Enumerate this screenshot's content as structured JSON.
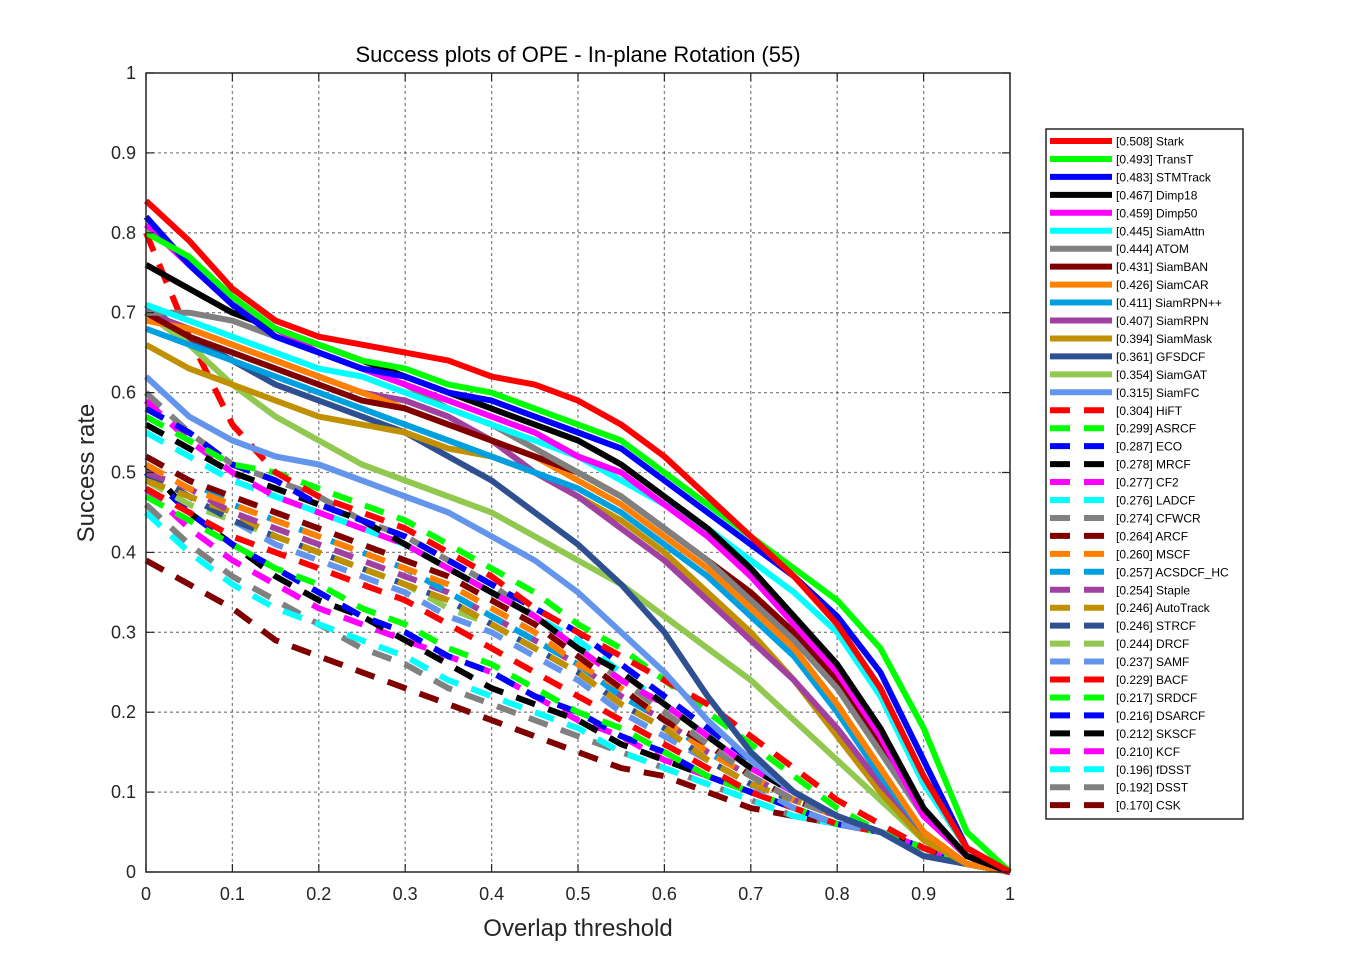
{
  "chart_data": {
    "type": "line",
    "title": "Success plots of OPE - In-plane Rotation (55)",
    "xlabel": "Overlap threshold",
    "ylabel": "Success rate",
    "xlim": [
      0,
      1
    ],
    "ylim": [
      0,
      1
    ],
    "xticks": [
      "0",
      "0.1",
      "0.2",
      "0.3",
      "0.4",
      "0.5",
      "0.6",
      "0.7",
      "0.8",
      "0.9",
      "1"
    ],
    "yticks": [
      "0",
      "0.1",
      "0.2",
      "0.3",
      "0.4",
      "0.5",
      "0.6",
      "0.7",
      "0.8",
      "0.9",
      "1"
    ],
    "grid": true,
    "legend_position": "right-outside",
    "x": [
      0,
      0.05,
      0.1,
      0.15,
      0.2,
      0.25,
      0.3,
      0.35,
      0.4,
      0.45,
      0.5,
      0.55,
      0.6,
      0.65,
      0.7,
      0.75,
      0.8,
      0.85,
      0.9,
      0.95,
      1
    ],
    "series": [
      {
        "name": "[0.508] Stark",
        "color": "#FF0000",
        "dash": "solid",
        "values": [
          0.84,
          0.79,
          0.73,
          0.69,
          0.67,
          0.66,
          0.65,
          0.64,
          0.62,
          0.61,
          0.59,
          0.56,
          0.52,
          0.47,
          0.42,
          0.37,
          0.31,
          0.23,
          0.12,
          0.03,
          0.0
        ]
      },
      {
        "name": "[0.493] TransT",
        "color": "#00FF00",
        "dash": "solid",
        "values": [
          0.8,
          0.77,
          0.72,
          0.68,
          0.66,
          0.64,
          0.63,
          0.61,
          0.6,
          0.58,
          0.56,
          0.54,
          0.5,
          0.46,
          0.42,
          0.38,
          0.34,
          0.28,
          0.18,
          0.05,
          0.0
        ]
      },
      {
        "name": "[0.483] STMTrack",
        "color": "#0000FF",
        "dash": "solid",
        "values": [
          0.82,
          0.76,
          0.71,
          0.67,
          0.65,
          0.63,
          0.62,
          0.6,
          0.59,
          0.57,
          0.55,
          0.53,
          0.49,
          0.45,
          0.41,
          0.37,
          0.32,
          0.25,
          0.14,
          0.03,
          0.0
        ]
      },
      {
        "name": "[0.467] Dimp18",
        "color": "#000000",
        "dash": "solid",
        "values": [
          0.76,
          0.73,
          0.7,
          0.68,
          0.66,
          0.64,
          0.62,
          0.6,
          0.58,
          0.56,
          0.54,
          0.51,
          0.47,
          0.43,
          0.38,
          0.32,
          0.26,
          0.18,
          0.08,
          0.02,
          0.0
        ]
      },
      {
        "name": "[0.459] Dimp50",
        "color": "#FF00FF",
        "dash": "solid",
        "values": [
          0.81,
          0.76,
          0.71,
          0.68,
          0.65,
          0.63,
          0.61,
          0.59,
          0.57,
          0.55,
          0.52,
          0.5,
          0.46,
          0.42,
          0.37,
          0.31,
          0.25,
          0.17,
          0.07,
          0.02,
          0.0
        ]
      },
      {
        "name": "[0.445] SiamAttn",
        "color": "#00FFFF",
        "dash": "solid",
        "values": [
          0.71,
          0.69,
          0.67,
          0.65,
          0.63,
          0.62,
          0.6,
          0.58,
          0.56,
          0.54,
          0.52,
          0.49,
          0.46,
          0.43,
          0.39,
          0.35,
          0.3,
          0.22,
          0.11,
          0.03,
          0.0
        ]
      },
      {
        "name": "[0.444] ATOM",
        "color": "#808080",
        "dash": "solid",
        "values": [
          0.7,
          0.7,
          0.69,
          0.67,
          0.65,
          0.63,
          0.61,
          0.58,
          0.56,
          0.53,
          0.5,
          0.47,
          0.43,
          0.39,
          0.34,
          0.29,
          0.23,
          0.15,
          0.07,
          0.02,
          0.0
        ]
      },
      {
        "name": "[0.431] SiamBAN",
        "color": "#800000",
        "dash": "solid",
        "values": [
          0.7,
          0.67,
          0.65,
          0.63,
          0.61,
          0.59,
          0.58,
          0.56,
          0.54,
          0.52,
          0.5,
          0.47,
          0.43,
          0.39,
          0.35,
          0.3,
          0.24,
          0.16,
          0.07,
          0.02,
          0.0
        ]
      },
      {
        "name": "[0.426] SiamCAR",
        "color": "#FF8000",
        "dash": "solid",
        "values": [
          0.69,
          0.68,
          0.66,
          0.64,
          0.62,
          0.6,
          0.58,
          0.56,
          0.54,
          0.52,
          0.49,
          0.46,
          0.42,
          0.38,
          0.33,
          0.28,
          0.21,
          0.13,
          0.05,
          0.01,
          0.0
        ]
      },
      {
        "name": "[0.411] SiamRPN++",
        "color": "#00A0E0",
        "dash": "solid",
        "values": [
          0.68,
          0.66,
          0.64,
          0.62,
          0.6,
          0.58,
          0.56,
          0.54,
          0.52,
          0.5,
          0.48,
          0.45,
          0.41,
          0.37,
          0.32,
          0.27,
          0.2,
          0.12,
          0.05,
          0.01,
          0.0
        ]
      },
      {
        "name": "[0.407] SiamRPN",
        "color": "#A040A0",
        "dash": "solid",
        "values": [
          0.7,
          0.68,
          0.66,
          0.64,
          0.62,
          0.6,
          0.59,
          0.57,
          0.54,
          0.5,
          0.47,
          0.43,
          0.39,
          0.34,
          0.29,
          0.24,
          0.18,
          0.11,
          0.05,
          0.01,
          0.0
        ]
      },
      {
        "name": "[0.394] SiamMask",
        "color": "#C09000",
        "dash": "solid",
        "values": [
          0.66,
          0.63,
          0.61,
          0.59,
          0.57,
          0.56,
          0.55,
          0.53,
          0.52,
          0.5,
          0.47,
          0.44,
          0.4,
          0.35,
          0.3,
          0.24,
          0.17,
          0.1,
          0.04,
          0.01,
          0.0
        ]
      },
      {
        "name": "[0.361] GFSDCF",
        "color": "#2E5090",
        "dash": "solid",
        "values": [
          0.71,
          0.67,
          0.64,
          0.61,
          0.59,
          0.57,
          0.55,
          0.52,
          0.49,
          0.45,
          0.41,
          0.36,
          0.3,
          0.22,
          0.15,
          0.1,
          0.07,
          0.05,
          0.02,
          0.01,
          0.0
        ]
      },
      {
        "name": "[0.354] SiamGAT",
        "color": "#90C850",
        "dash": "solid",
        "values": [
          0.7,
          0.66,
          0.61,
          0.57,
          0.54,
          0.51,
          0.49,
          0.47,
          0.45,
          0.42,
          0.39,
          0.36,
          0.32,
          0.28,
          0.24,
          0.19,
          0.14,
          0.09,
          0.04,
          0.01,
          0.0
        ]
      },
      {
        "name": "[0.315] SiamFC",
        "color": "#6495ED",
        "dash": "solid",
        "values": [
          0.62,
          0.57,
          0.54,
          0.52,
          0.51,
          0.49,
          0.47,
          0.45,
          0.42,
          0.39,
          0.35,
          0.3,
          0.25,
          0.19,
          0.14,
          0.1,
          0.07,
          0.05,
          0.02,
          0.01,
          0.0
        ]
      },
      {
        "name": "[0.304] HiFT",
        "color": "#FF0000",
        "dash": "dashed",
        "values": [
          0.8,
          0.67,
          0.56,
          0.5,
          0.47,
          0.45,
          0.43,
          0.4,
          0.37,
          0.33,
          0.3,
          0.27,
          0.24,
          0.21,
          0.17,
          0.13,
          0.09,
          0.06,
          0.03,
          0.01,
          0.0
        ]
      },
      {
        "name": "[0.299] ASRCF",
        "color": "#00FF00",
        "dash": "dashed",
        "values": [
          0.57,
          0.54,
          0.51,
          0.5,
          0.48,
          0.46,
          0.44,
          0.41,
          0.38,
          0.35,
          0.31,
          0.28,
          0.24,
          0.2,
          0.16,
          0.12,
          0.08,
          0.05,
          0.03,
          0.01,
          0.0
        ]
      },
      {
        "name": "[0.287] ECO",
        "color": "#0000FF",
        "dash": "dashed",
        "values": [
          0.58,
          0.55,
          0.51,
          0.49,
          0.46,
          0.44,
          0.42,
          0.39,
          0.36,
          0.33,
          0.3,
          0.26,
          0.22,
          0.18,
          0.14,
          0.1,
          0.07,
          0.05,
          0.03,
          0.01,
          0.0
        ]
      },
      {
        "name": "[0.278] MRCF",
        "color": "#000000",
        "dash": "dashed",
        "values": [
          0.56,
          0.53,
          0.5,
          0.48,
          0.46,
          0.44,
          0.41,
          0.38,
          0.35,
          0.32,
          0.28,
          0.25,
          0.21,
          0.17,
          0.13,
          0.1,
          0.07,
          0.05,
          0.03,
          0.01,
          0.0
        ]
      },
      {
        "name": "[0.277] CF2",
        "color": "#FF00FF",
        "dash": "dashed",
        "values": [
          0.59,
          0.54,
          0.5,
          0.47,
          0.45,
          0.43,
          0.41,
          0.38,
          0.35,
          0.32,
          0.28,
          0.24,
          0.21,
          0.17,
          0.13,
          0.1,
          0.07,
          0.05,
          0.03,
          0.01,
          0.0
        ]
      },
      {
        "name": "[0.276] LADCF",
        "color": "#00FFFF",
        "dash": "dashed",
        "values": [
          0.55,
          0.52,
          0.49,
          0.47,
          0.45,
          0.43,
          0.41,
          0.38,
          0.35,
          0.32,
          0.29,
          0.25,
          0.21,
          0.17,
          0.13,
          0.1,
          0.07,
          0.05,
          0.03,
          0.01,
          0.0
        ]
      },
      {
        "name": "[0.274] CFWCR",
        "color": "#808080",
        "dash": "dashed",
        "values": [
          0.6,
          0.55,
          0.51,
          0.49,
          0.47,
          0.44,
          0.42,
          0.39,
          0.36,
          0.32,
          0.28,
          0.24,
          0.2,
          0.16,
          0.12,
          0.09,
          0.07,
          0.05,
          0.03,
          0.01,
          0.0
        ]
      },
      {
        "name": "[0.264] ARCF",
        "color": "#800000",
        "dash": "dashed",
        "values": [
          0.52,
          0.49,
          0.47,
          0.45,
          0.43,
          0.41,
          0.39,
          0.37,
          0.34,
          0.31,
          0.27,
          0.23,
          0.19,
          0.16,
          0.12,
          0.09,
          0.07,
          0.05,
          0.03,
          0.01,
          0.0
        ]
      },
      {
        "name": "[0.260] MSCF",
        "color": "#FF8000",
        "dash": "dashed",
        "values": [
          0.51,
          0.48,
          0.46,
          0.44,
          0.42,
          0.4,
          0.38,
          0.36,
          0.33,
          0.3,
          0.26,
          0.23,
          0.19,
          0.15,
          0.12,
          0.09,
          0.07,
          0.05,
          0.03,
          0.01,
          0.0
        ]
      },
      {
        "name": "[0.257] ACSDCF_HC",
        "color": "#00A0E0",
        "dash": "dashed",
        "values": [
          0.52,
          0.49,
          0.46,
          0.44,
          0.42,
          0.4,
          0.38,
          0.35,
          0.32,
          0.29,
          0.26,
          0.22,
          0.19,
          0.15,
          0.12,
          0.09,
          0.07,
          0.05,
          0.03,
          0.01,
          0.0
        ]
      },
      {
        "name": "[0.254] Staple",
        "color": "#A040A0",
        "dash": "dashed",
        "values": [
          0.5,
          0.48,
          0.45,
          0.43,
          0.41,
          0.39,
          0.37,
          0.35,
          0.32,
          0.29,
          0.26,
          0.22,
          0.19,
          0.15,
          0.12,
          0.09,
          0.07,
          0.05,
          0.03,
          0.01,
          0.0
        ]
      },
      {
        "name": "[0.246] AutoTrack",
        "color": "#C09000",
        "dash": "dashed",
        "values": [
          0.49,
          0.47,
          0.45,
          0.42,
          0.4,
          0.38,
          0.36,
          0.34,
          0.31,
          0.28,
          0.25,
          0.21,
          0.18,
          0.14,
          0.11,
          0.09,
          0.07,
          0.05,
          0.03,
          0.01,
          0.0
        ]
      },
      {
        "name": "[0.246] STRCF",
        "color": "#2E5090",
        "dash": "dashed",
        "values": [
          0.5,
          0.47,
          0.44,
          0.42,
          0.4,
          0.38,
          0.36,
          0.34,
          0.31,
          0.28,
          0.25,
          0.21,
          0.18,
          0.14,
          0.11,
          0.09,
          0.07,
          0.05,
          0.03,
          0.01,
          0.0
        ]
      },
      {
        "name": "[0.244] DRCF",
        "color": "#90C850",
        "dash": "dashed",
        "values": [
          0.49,
          0.46,
          0.44,
          0.42,
          0.4,
          0.38,
          0.36,
          0.33,
          0.31,
          0.28,
          0.25,
          0.21,
          0.18,
          0.14,
          0.11,
          0.09,
          0.07,
          0.05,
          0.03,
          0.01,
          0.0
        ]
      },
      {
        "name": "[0.237] SAMF",
        "color": "#6495ED",
        "dash": "dashed",
        "values": [
          0.5,
          0.47,
          0.44,
          0.41,
          0.39,
          0.37,
          0.35,
          0.32,
          0.3,
          0.27,
          0.24,
          0.2,
          0.17,
          0.14,
          0.11,
          0.08,
          0.06,
          0.05,
          0.03,
          0.01,
          0.0
        ]
      },
      {
        "name": "[0.229] BACF",
        "color": "#FF0000",
        "dash": "dashed",
        "values": [
          0.48,
          0.45,
          0.42,
          0.4,
          0.38,
          0.36,
          0.34,
          0.31,
          0.28,
          0.25,
          0.22,
          0.19,
          0.16,
          0.13,
          0.1,
          0.08,
          0.06,
          0.05,
          0.03,
          0.01,
          0.0
        ]
      },
      {
        "name": "[0.217] SRDCF",
        "color": "#00FF00",
        "dash": "dashed",
        "values": [
          0.47,
          0.44,
          0.41,
          0.38,
          0.36,
          0.33,
          0.31,
          0.28,
          0.26,
          0.23,
          0.2,
          0.18,
          0.15,
          0.12,
          0.1,
          0.08,
          0.06,
          0.05,
          0.03,
          0.01,
          0.0
        ]
      },
      {
        "name": "[0.216] DSARCF",
        "color": "#0000FF",
        "dash": "dashed",
        "values": [
          0.5,
          0.45,
          0.41,
          0.38,
          0.35,
          0.32,
          0.3,
          0.27,
          0.25,
          0.22,
          0.2,
          0.17,
          0.15,
          0.12,
          0.1,
          0.08,
          0.06,
          0.05,
          0.03,
          0.01,
          0.0
        ]
      },
      {
        "name": "[0.212] SKSCF",
        "color": "#000000",
        "dash": "dashed",
        "values": [
          0.51,
          0.45,
          0.41,
          0.37,
          0.34,
          0.32,
          0.29,
          0.26,
          0.23,
          0.21,
          0.19,
          0.16,
          0.14,
          0.12,
          0.1,
          0.08,
          0.06,
          0.05,
          0.03,
          0.01,
          0.0
        ]
      },
      {
        "name": "[0.210] KCF",
        "color": "#FF00FF",
        "dash": "dashed",
        "values": [
          0.48,
          0.43,
          0.39,
          0.36,
          0.33,
          0.31,
          0.29,
          0.27,
          0.25,
          0.22,
          0.19,
          0.17,
          0.14,
          0.12,
          0.1,
          0.08,
          0.06,
          0.05,
          0.03,
          0.01,
          0.0
        ]
      },
      {
        "name": "[0.196] fDSST",
        "color": "#00FFFF",
        "dash": "dashed",
        "values": [
          0.45,
          0.4,
          0.36,
          0.33,
          0.31,
          0.29,
          0.27,
          0.24,
          0.22,
          0.2,
          0.18,
          0.15,
          0.13,
          0.11,
          0.09,
          0.07,
          0.06,
          0.05,
          0.03,
          0.01,
          0.0
        ]
      },
      {
        "name": "[0.192] DSST",
        "color": "#808080",
        "dash": "dashed",
        "values": [
          0.46,
          0.41,
          0.37,
          0.34,
          0.31,
          0.28,
          0.26,
          0.23,
          0.21,
          0.19,
          0.17,
          0.15,
          0.13,
          0.11,
          0.09,
          0.07,
          0.06,
          0.05,
          0.03,
          0.01,
          0.0
        ]
      },
      {
        "name": "[0.170] CSK",
        "color": "#800000",
        "dash": "dashed",
        "values": [
          0.39,
          0.36,
          0.33,
          0.29,
          0.27,
          0.25,
          0.23,
          0.21,
          0.19,
          0.17,
          0.15,
          0.13,
          0.12,
          0.1,
          0.08,
          0.07,
          0.06,
          0.05,
          0.03,
          0.01,
          0.0
        ]
      }
    ]
  }
}
